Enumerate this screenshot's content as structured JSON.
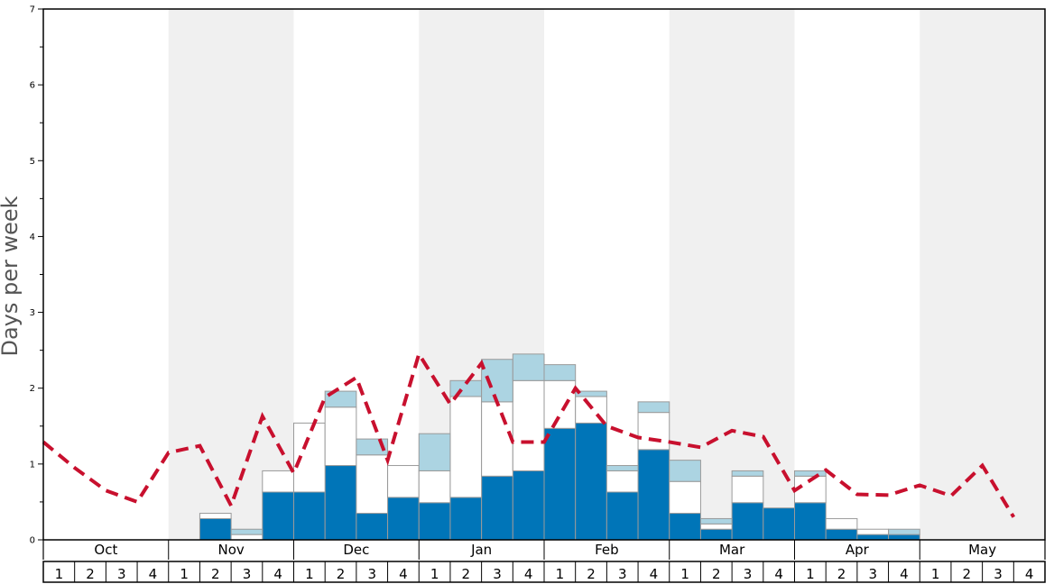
{
  "chart_data": {
    "type": "bar",
    "title": "",
    "xlabel": "",
    "ylabel": "Days per week",
    "ylim": [
      0,
      7
    ],
    "yticks": [
      "0",
      "1",
      "2",
      "3",
      "4",
      "5",
      "6",
      "7"
    ],
    "months": [
      "Oct",
      "Nov",
      "Dec",
      "Jan",
      "Feb",
      "Mar",
      "Apr",
      "May"
    ],
    "week_labels": [
      "1",
      "2",
      "3",
      "4"
    ],
    "stacked": true,
    "series": [
      {
        "color": "#0075b8",
        "values": [
          0,
          0,
          0,
          0,
          0,
          0.28,
          0,
          0.63,
          0.63,
          0.98,
          0.35,
          0.56,
          0.49,
          0.56,
          0.84,
          0.91,
          1.47,
          1.54,
          0.63,
          1.19,
          0.35,
          0.14,
          0.49,
          0.42,
          0.49,
          0.14,
          0.07,
          0.07,
          0,
          0,
          0,
          0
        ]
      },
      {
        "color": "#ffffff",
        "values": [
          0,
          0,
          0,
          0,
          0,
          0.07,
          0.07,
          0.28,
          0.91,
          0.77,
          0.77,
          0.42,
          0.42,
          1.33,
          0.98,
          1.19,
          0.63,
          0.35,
          0.28,
          0.49,
          0.42,
          0.07,
          0.35,
          0,
          0.35,
          0.14,
          0.07,
          0,
          0,
          0,
          0,
          0
        ]
      },
      {
        "color": "#acd4e2",
        "values": [
          0,
          0,
          0,
          0,
          0,
          0,
          0.07,
          0,
          0,
          0.21,
          0.21,
          0,
          0.49,
          0.21,
          0.56,
          0.35,
          0.21,
          0.07,
          0.07,
          0.14,
          0.28,
          0.07,
          0.07,
          0,
          0.07,
          0,
          0,
          0.07,
          0,
          0,
          0,
          0
        ]
      }
    ],
    "average_line": {
      "color": "#c8102e",
      "style": "dashed",
      "values": [
        1.29,
        0.95,
        0.65,
        0.5,
        1.15,
        1.24,
        0.45,
        1.63,
        0.88,
        1.88,
        2.14,
        1.05,
        2.45,
        1.79,
        2.33,
        1.29,
        1.29,
        2.0,
        1.5,
        1.35,
        1.29,
        1.22,
        1.44,
        1.36,
        0.65,
        0.92,
        0.6,
        0.59,
        0.72,
        0.58,
        0.98,
        0.3
      ]
    },
    "band_colors": [
      "#ffffff",
      "#f0f0f0"
    ],
    "grid": false,
    "legend": "none"
  }
}
